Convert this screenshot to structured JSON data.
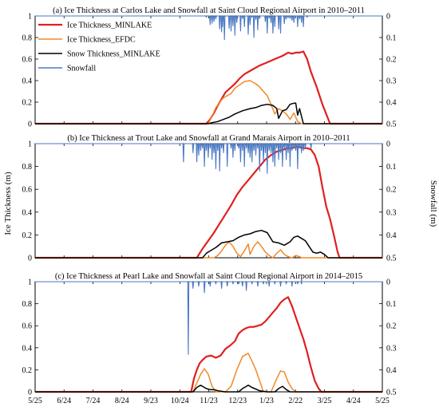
{
  "figure": {
    "ylabel_left": "Ice Thickness (m)",
    "ylabel_right": "Snowfall (m)"
  },
  "legend": [
    {
      "label": "Ice Thickness_MINLAKE",
      "color": "#e02020"
    },
    {
      "label": "Ice Thickness_EFDC",
      "color": "#ef8a2a"
    },
    {
      "label": "Snow Thickness_MINLAKE",
      "color": "#000000"
    },
    {
      "label": "Snowfall",
      "color": "#4a78c2"
    }
  ],
  "x_ticks": [
    "5/25",
    "6/24",
    "7/24",
    "8/24",
    "9/23",
    "10/24",
    "11/23",
    "12/23",
    "1/23",
    "2/22",
    "3/25",
    "4/24",
    "5/25"
  ],
  "y_left_ticks": [
    "0",
    "0.2",
    "0.4",
    "0.6",
    "0.8",
    "1"
  ],
  "y_right_ticks": [
    "0.5",
    "0.4",
    "0.3",
    "0.2",
    "0.1",
    "0"
  ],
  "chart_data": [
    {
      "type": "line",
      "title": "(a) Ice Thickness at Carlos Lake and Snowfall at Saint Cloud Regional Airport in 2010–2011",
      "x_unit": "days since 5/25",
      "ylim": [
        0,
        1
      ],
      "y2lim": [
        0.5,
        0
      ],
      "series": [
        {
          "name": "Ice Thickness_MINLAKE",
          "x": [
            180,
            184,
            188,
            192,
            196,
            200,
            205,
            210,
            215,
            220,
            228,
            236,
            244,
            252,
            260,
            266,
            270,
            274,
            278,
            282,
            286,
            290,
            296,
            302,
            310
          ],
          "y": [
            0,
            0.04,
            0.1,
            0.17,
            0.23,
            0.29,
            0.33,
            0.37,
            0.42,
            0.46,
            0.5,
            0.54,
            0.57,
            0.6,
            0.63,
            0.66,
            0.65,
            0.66,
            0.66,
            0.67,
            0.6,
            0.48,
            0.34,
            0.18,
            0
          ]
        },
        {
          "name": "Ice Thickness_EFDC",
          "x": [
            182,
            186,
            190,
            194,
            198,
            202,
            206,
            210,
            215,
            220,
            226,
            232,
            236,
            240,
            244,
            248,
            252,
            256,
            260,
            264,
            268,
            272,
            276,
            280
          ],
          "y": [
            0,
            0.07,
            0.15,
            0.2,
            0.24,
            0.26,
            0.28,
            0.33,
            0.36,
            0.39,
            0.4,
            0.37,
            0.34,
            0.3,
            0.26,
            0.18,
            0.09,
            0.14,
            0.12,
            0.09,
            0.04,
            0.1,
            0.02,
            0
          ]
        },
        {
          "name": "Snow Thickness_MINLAKE",
          "x": [
            182,
            186,
            192,
            198,
            204,
            210,
            218,
            226,
            232,
            238,
            244,
            250,
            254,
            256,
            260,
            264,
            268,
            272,
            274,
            276,
            278,
            282
          ],
          "y": [
            0,
            0.01,
            0.02,
            0.04,
            0.06,
            0.09,
            0.12,
            0.14,
            0.15,
            0.17,
            0.18,
            0.17,
            0.14,
            0.05,
            0.12,
            0.13,
            0.18,
            0.19,
            0.19,
            0.08,
            0.14,
            0
          ]
        },
        {
          "name": "Snowfall",
          "x": [
            180,
            184,
            186,
            188,
            190,
            194,
            196,
            197,
            199,
            204,
            206,
            208,
            210,
            212,
            216,
            218,
            220,
            224,
            226,
            228,
            230,
            232,
            234,
            236,
            242,
            244,
            246,
            248,
            250,
            252,
            256,
            258,
            262,
            264,
            266,
            268,
            270,
            272,
            276,
            278,
            280,
            282,
            286
          ],
          "y": [
            0.006,
            0.04,
            0.034,
            0.026,
            0.014,
            0.06,
            0.074,
            0.05,
            0.11,
            0.058,
            0.07,
            0.046,
            0.09,
            0.03,
            0.07,
            0.012,
            0.05,
            0.086,
            0.04,
            0.006,
            0.1,
            0.016,
            0.064,
            0.012,
            0.026,
            0.08,
            0.01,
            0.032,
            0.08,
            0.05,
            0.06,
            0.08,
            0.036,
            0.014,
            0.008,
            0.012,
            0.02,
            0.03,
            0.05,
            0.014,
            0.03,
            0.05,
            0.006
          ]
        }
      ]
    },
    {
      "type": "line",
      "title": "(b) Ice Thickness at Trout Lake and Snowfall at Grand Marais Airport in 2010–2011",
      "x_unit": "days since 5/25",
      "ylim": [
        0,
        1
      ],
      "y2lim": [
        0.5,
        0
      ],
      "series": [
        {
          "name": "Ice Thickness_MINLAKE",
          "x": [
            170,
            176,
            182,
            188,
            194,
            200,
            206,
            212,
            218,
            224,
            230,
            236,
            242,
            248,
            254,
            258,
            262,
            266,
            270,
            274,
            278,
            282,
            286,
            290,
            294,
            298,
            302,
            306,
            310,
            314,
            318,
            320
          ],
          "y": [
            0,
            0.08,
            0.15,
            0.22,
            0.3,
            0.38,
            0.46,
            0.55,
            0.62,
            0.68,
            0.74,
            0.8,
            0.86,
            0.9,
            0.93,
            0.94,
            0.95,
            0.96,
            0.96,
            0.97,
            0.97,
            0.96,
            0.96,
            0.95,
            0.9,
            0.8,
            0.62,
            0.45,
            0.34,
            0.2,
            0.05,
            0
          ]
        },
        {
          "name": "Ice Thickness_EFDC",
          "x": [
            188,
            192,
            196,
            200,
            204,
            208,
            212,
            216,
            220,
            224,
            226,
            230,
            234,
            238,
            242,
            246,
            250,
            254,
            258,
            262,
            266,
            270,
            274,
            278,
            280
          ],
          "y": [
            0,
            0.02,
            0.06,
            0.11,
            0.14,
            0.1,
            0.04,
            0.01,
            0.06,
            0.12,
            0.03,
            0.1,
            0.14,
            0.1,
            0.05,
            0.02,
            0,
            0.04,
            0.07,
            0.03,
            0.01,
            0,
            0.02,
            0.01,
            0
          ]
        },
        {
          "name": "Snow Thickness_MINLAKE",
          "x": [
            172,
            176,
            180,
            184,
            190,
            196,
            202,
            208,
            214,
            220,
            226,
            232,
            238,
            244,
            250,
            256,
            262,
            268,
            272,
            276,
            280,
            284,
            288,
            292,
            296,
            300,
            304,
            308
          ],
          "y": [
            0,
            0,
            0.04,
            0.06,
            0.09,
            0.13,
            0.14,
            0.15,
            0.18,
            0.2,
            0.21,
            0.23,
            0.24,
            0.22,
            0.14,
            0.13,
            0.11,
            0.14,
            0.18,
            0.19,
            0.17,
            0.15,
            0.1,
            0.05,
            0.04,
            0.05,
            0.03,
            0
          ]
        },
        {
          "name": "Snowfall",
          "x": [
            156,
            166,
            170,
            172,
            174,
            176,
            178,
            180,
            182,
            184,
            186,
            188,
            190,
            192,
            194,
            196,
            198,
            202,
            206,
            208,
            210,
            214,
            216,
            218,
            220,
            222,
            224,
            226,
            228,
            230,
            232,
            234,
            236,
            238,
            240,
            242,
            244,
            246,
            248,
            250,
            252,
            254,
            256,
            258,
            260,
            262,
            264,
            266,
            268,
            270,
            272,
            274,
            276,
            278,
            280,
            282,
            284,
            290
          ],
          "y": [
            0.08,
            0.04,
            0.08,
            0.05,
            0.03,
            0.02,
            0.1,
            0.03,
            0.06,
            0.02,
            0.07,
            0.04,
            0.11,
            0.03,
            0.12,
            0.02,
            0.04,
            0.1,
            0.02,
            0.06,
            0.03,
            0.02,
            0.08,
            0.03,
            0.1,
            0.02,
            0.04,
            0.06,
            0.08,
            0.03,
            0.05,
            0.02,
            0.12,
            0.03,
            0.08,
            0.04,
            0.13,
            0.03,
            0.04,
            0.08,
            0.1,
            0.02,
            0.07,
            0.04,
            0.1,
            0.02,
            0.07,
            0.04,
            0.1,
            0.03,
            0.02,
            0.03,
            0.11,
            0.02,
            0.04,
            0.03,
            0.02,
            0.02
          ]
        }
      ]
    },
    {
      "type": "line",
      "title": "(c) Ice Thickness at Pearl Lake and Snowfall at Saint Cloud Regional Airport in 2014–2015",
      "x_unit": "days since 5/25",
      "ylim": [
        0,
        1
      ],
      "y2lim": [
        0.5,
        0
      ],
      "series": [
        {
          "name": "Ice Thickness_MINLAKE",
          "x": [
            164,
            167,
            170,
            173,
            176,
            180,
            185,
            190,
            195,
            200,
            205,
            210,
            214,
            218,
            222,
            226,
            230,
            234,
            238,
            242,
            246,
            250,
            254,
            258,
            262,
            266,
            270,
            274,
            278,
            282,
            286,
            290,
            294,
            298,
            301
          ],
          "y": [
            0,
            0.12,
            0.2,
            0.26,
            0.29,
            0.32,
            0.33,
            0.31,
            0.33,
            0.39,
            0.42,
            0.46,
            0.53,
            0.56,
            0.58,
            0.59,
            0.59,
            0.6,
            0.61,
            0.64,
            0.68,
            0.72,
            0.76,
            0.81,
            0.84,
            0.86,
            0.78,
            0.68,
            0.58,
            0.48,
            0.36,
            0.22,
            0.1,
            0.03,
            0
          ]
        },
        {
          "name": "Ice Thickness_EFDC",
          "x": [
            166,
            170,
            174,
            178,
            182,
            186,
            190,
            194,
            200,
            206,
            212,
            218,
            224,
            228,
            232,
            236,
            240,
            244,
            248,
            254,
            258,
            262,
            266,
            270,
            274
          ],
          "y": [
            0,
            0.08,
            0.16,
            0.21,
            0.16,
            0.05,
            0,
            0,
            0,
            0.05,
            0.2,
            0.32,
            0.35,
            0.28,
            0.2,
            0.1,
            0,
            0,
            0,
            0.12,
            0.19,
            0.18,
            0.09,
            0.03,
            0
          ]
        },
        {
          "name": "Snow Thickness_MINLAKE",
          "x": [
            166,
            170,
            174,
            176,
            180,
            184,
            188,
            192,
            200,
            208,
            214,
            218,
            222,
            224,
            228,
            236,
            244,
            252,
            256,
            260,
            264,
            268
          ],
          "y": [
            0,
            0.04,
            0.06,
            0.05,
            0.03,
            0.02,
            0.02,
            0.01,
            0,
            0,
            0,
            0.03,
            0.05,
            0.06,
            0.04,
            0.01,
            0,
            0,
            0.03,
            0.05,
            0.02,
            0
          ]
        },
        {
          "name": "Snowfall",
          "x": [
            161,
            166,
            172,
            178,
            184,
            190,
            196,
            202,
            208,
            214,
            218,
            222,
            228,
            234,
            240,
            246,
            252,
            258,
            264,
            270,
            276,
            280
          ],
          "y": [
            0.33,
            0.03,
            0.02,
            0.05,
            0.02,
            0.01,
            0.03,
            0.02,
            0.01,
            0.01,
            0.02,
            0.04,
            0.01,
            0.02,
            0.01,
            0.02,
            0.01,
            0.02,
            0.01,
            0.02,
            0.01,
            0.01
          ]
        }
      ]
    }
  ]
}
